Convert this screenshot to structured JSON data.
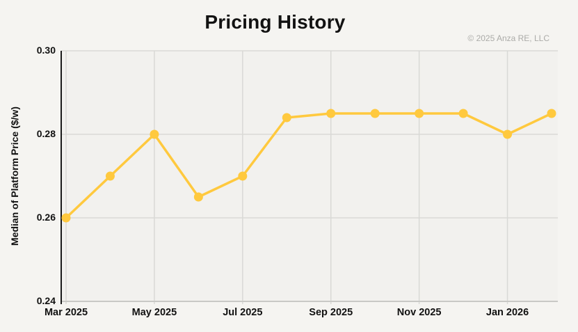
{
  "chart_data": {
    "type": "line",
    "title": "Pricing History",
    "attribution": "© 2025 Anza RE, LLC",
    "xlabel": "",
    "ylabel": "Median of Platform Price ($/w)",
    "x": [
      "Mar 2025",
      "Apr 2025",
      "May 2025",
      "Jun 2025",
      "Jul 2025",
      "Aug 2025",
      "Sep 2025",
      "Oct 2025",
      "Nov 2025",
      "Dec 2025",
      "Jan 2026",
      "Feb 2026"
    ],
    "series": [
      {
        "name": "Median of Platform Price ($/w)",
        "values": [
          0.26,
          0.27,
          0.28,
          0.265,
          0.27,
          0.284,
          0.285,
          0.285,
          0.285,
          0.285,
          0.28,
          0.285
        ]
      }
    ],
    "ylim": [
      0.24,
      0.3
    ],
    "y_ticks": [
      0.24,
      0.26,
      0.28,
      0.3
    ],
    "y_tick_labels": [
      "0.24",
      "0.26",
      "0.28",
      "0.30"
    ],
    "x_tick_indices": [
      0,
      2,
      4,
      6,
      8,
      10
    ],
    "x_tick_labels": [
      "Mar 2025",
      "May 2025",
      "Jul 2025",
      "Sep 2025",
      "Nov 2025",
      "Jan 2026"
    ],
    "grid": true,
    "legend_position": "none",
    "marker": "circle",
    "colors": {
      "line": "#FFC93E",
      "marker": "#FFC93E",
      "grid": "#D9D9D6",
      "y_axis": "#1B1B1B",
      "x_axis": "#C9C9C6",
      "title": "#121212",
      "tick_label": "#111111",
      "attribution": "#ABABA8",
      "page_bg": "#F5F4F1",
      "plot_bg": "#F2F1EE"
    }
  }
}
